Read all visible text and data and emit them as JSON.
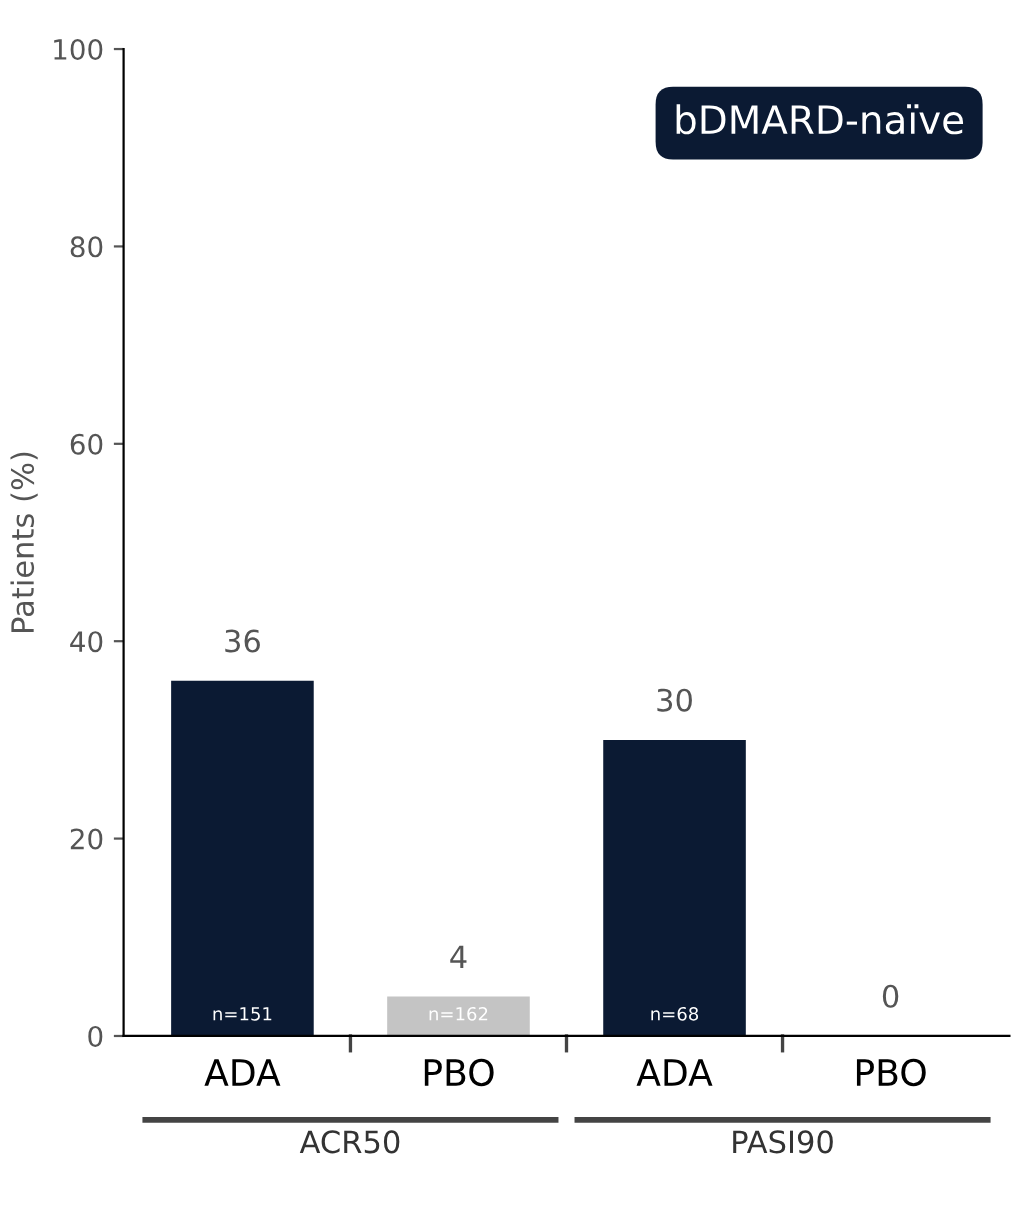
{
  "chart_data": {
    "type": "bar",
    "title": "bDMARD-naïve",
    "ylabel": "Patients (%)",
    "categories": [
      "ADA",
      "PBO",
      "ADA",
      "PBO"
    ],
    "values": [
      36,
      4,
      30,
      0
    ],
    "colors": [
      "#0b1a33",
      "#c4c4c4",
      "#0b1a33",
      "#c4c4c4"
    ],
    "ylim": [
      0,
      100
    ],
    "yticks": [
      0,
      20,
      40,
      60,
      80,
      100
    ],
    "grid": false,
    "data_labels": true,
    "annotations": [
      "ACR50",
      "PASI90",
      "n=151",
      "n=162",
      "n=68"
    ]
  }
}
